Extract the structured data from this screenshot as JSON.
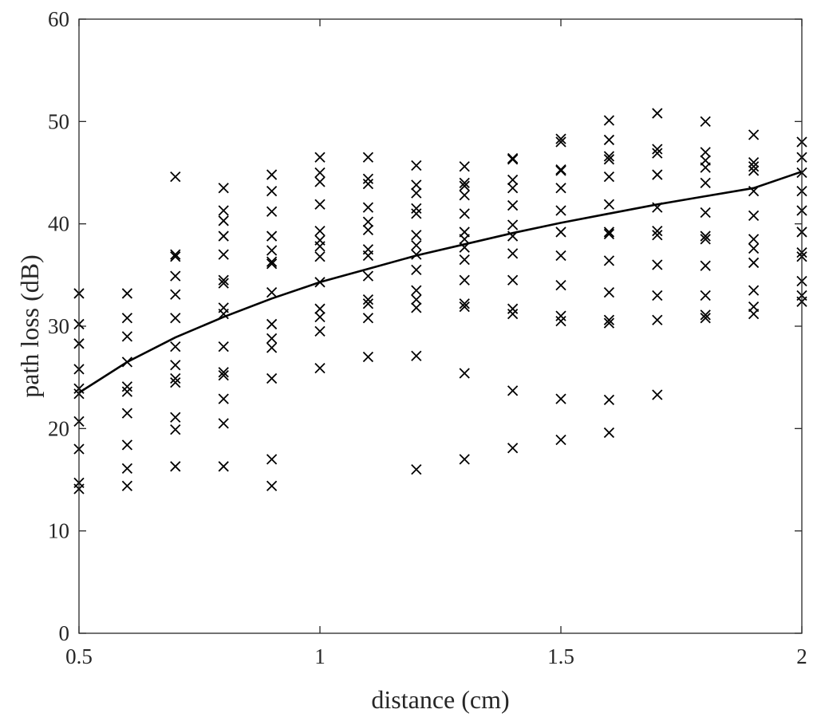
{
  "chart_data": {
    "type": "scatter",
    "title": "",
    "xlabel": "distance (cm)",
    "ylabel": "path loss (dB)",
    "xlim": [
      0.5,
      2
    ],
    "ylim": [
      0,
      60
    ],
    "xticks": [
      0.5,
      1,
      1.5,
      2
    ],
    "xtick_labels": [
      "0.5",
      "1",
      "1.5",
      "2"
    ],
    "yticks": [
      0,
      10,
      20,
      30,
      40,
      50,
      60
    ],
    "ytick_labels": [
      "0",
      "10",
      "20",
      "30",
      "40",
      "50",
      "60"
    ],
    "grid": false,
    "box": true,
    "colors": {
      "marks": "#000000",
      "axes": "#262626",
      "background": "#ffffff"
    },
    "series": [
      {
        "marker": "x",
        "points": [
          [
            0.5,
            33.2
          ],
          [
            0.5,
            30.2
          ],
          [
            0.5,
            28.3
          ],
          [
            0.5,
            25.8
          ],
          [
            0.5,
            23.9
          ],
          [
            0.5,
            23.4
          ],
          [
            0.5,
            20.7
          ],
          [
            0.5,
            18.0
          ],
          [
            0.5,
            14.7
          ],
          [
            0.5,
            14.1
          ],
          [
            0.6,
            33.2
          ],
          [
            0.6,
            30.8
          ],
          [
            0.6,
            29.0
          ],
          [
            0.6,
            26.5
          ],
          [
            0.6,
            24.1
          ],
          [
            0.6,
            23.6
          ],
          [
            0.6,
            21.5
          ],
          [
            0.6,
            18.4
          ],
          [
            0.6,
            16.1
          ],
          [
            0.6,
            14.4
          ],
          [
            0.7,
            44.6
          ],
          [
            0.7,
            37.0
          ],
          [
            0.7,
            36.8
          ],
          [
            0.7,
            34.9
          ],
          [
            0.7,
            33.1
          ],
          [
            0.7,
            30.8
          ],
          [
            0.7,
            28.0
          ],
          [
            0.7,
            26.2
          ],
          [
            0.7,
            24.9
          ],
          [
            0.7,
            24.5
          ],
          [
            0.7,
            21.1
          ],
          [
            0.7,
            19.9
          ],
          [
            0.7,
            16.3
          ],
          [
            0.8,
            43.5
          ],
          [
            0.8,
            41.3
          ],
          [
            0.8,
            40.3
          ],
          [
            0.8,
            38.8
          ],
          [
            0.8,
            37.0
          ],
          [
            0.8,
            34.5
          ],
          [
            0.8,
            34.2
          ],
          [
            0.8,
            31.8
          ],
          [
            0.8,
            31.2
          ],
          [
            0.8,
            28.0
          ],
          [
            0.8,
            25.5
          ],
          [
            0.8,
            25.2
          ],
          [
            0.8,
            22.9
          ],
          [
            0.8,
            20.5
          ],
          [
            0.8,
            16.3
          ],
          [
            0.9,
            44.8
          ],
          [
            0.9,
            43.2
          ],
          [
            0.9,
            41.2
          ],
          [
            0.9,
            38.8
          ],
          [
            0.9,
            37.4
          ],
          [
            0.9,
            36.3
          ],
          [
            0.9,
            36.1
          ],
          [
            0.9,
            33.3
          ],
          [
            0.9,
            30.2
          ],
          [
            0.9,
            28.8
          ],
          [
            0.9,
            27.9
          ],
          [
            0.9,
            24.9
          ],
          [
            0.9,
            17.0
          ],
          [
            0.9,
            14.4
          ],
          [
            1.0,
            46.5
          ],
          [
            1.0,
            45.0
          ],
          [
            1.0,
            44.1
          ],
          [
            1.0,
            41.9
          ],
          [
            1.0,
            39.3
          ],
          [
            1.0,
            38.4
          ],
          [
            1.0,
            37.8
          ],
          [
            1.0,
            36.8
          ],
          [
            1.0,
            34.3
          ],
          [
            1.0,
            31.7
          ],
          [
            1.0,
            30.9
          ],
          [
            1.0,
            29.5
          ],
          [
            1.0,
            25.9
          ],
          [
            1.1,
            46.5
          ],
          [
            1.1,
            44.4
          ],
          [
            1.1,
            43.9
          ],
          [
            1.1,
            41.6
          ],
          [
            1.1,
            40.2
          ],
          [
            1.1,
            39.4
          ],
          [
            1.1,
            37.5
          ],
          [
            1.1,
            36.9
          ],
          [
            1.1,
            34.9
          ],
          [
            1.1,
            32.6
          ],
          [
            1.1,
            32.2
          ],
          [
            1.1,
            30.8
          ],
          [
            1.1,
            27.0
          ],
          [
            1.2,
            45.7
          ],
          [
            1.2,
            43.8
          ],
          [
            1.2,
            43.0
          ],
          [
            1.2,
            41.5
          ],
          [
            1.2,
            41.0
          ],
          [
            1.2,
            38.9
          ],
          [
            1.2,
            37.9
          ],
          [
            1.2,
            37.0
          ],
          [
            1.2,
            35.5
          ],
          [
            1.2,
            33.5
          ],
          [
            1.2,
            32.6
          ],
          [
            1.2,
            31.8
          ],
          [
            1.2,
            27.1
          ],
          [
            1.2,
            16.0
          ],
          [
            1.3,
            45.6
          ],
          [
            1.3,
            44.0
          ],
          [
            1.3,
            43.7
          ],
          [
            1.3,
            42.8
          ],
          [
            1.3,
            41.0
          ],
          [
            1.3,
            39.2
          ],
          [
            1.3,
            38.5
          ],
          [
            1.3,
            37.7
          ],
          [
            1.3,
            36.5
          ],
          [
            1.3,
            34.5
          ],
          [
            1.3,
            32.2
          ],
          [
            1.3,
            31.9
          ],
          [
            1.3,
            25.4
          ],
          [
            1.3,
            17.0
          ],
          [
            1.4,
            46.4
          ],
          [
            1.4,
            46.3
          ],
          [
            1.4,
            44.3
          ],
          [
            1.4,
            43.5
          ],
          [
            1.4,
            41.8
          ],
          [
            1.4,
            39.9
          ],
          [
            1.4,
            38.8
          ],
          [
            1.4,
            37.1
          ],
          [
            1.4,
            34.5
          ],
          [
            1.4,
            31.7
          ],
          [
            1.4,
            31.2
          ],
          [
            1.4,
            23.7
          ],
          [
            1.4,
            18.1
          ],
          [
            1.5,
            48.3
          ],
          [
            1.5,
            48.0
          ],
          [
            1.5,
            45.3
          ],
          [
            1.5,
            45.2
          ],
          [
            1.5,
            43.5
          ],
          [
            1.5,
            41.3
          ],
          [
            1.5,
            39.2
          ],
          [
            1.5,
            36.9
          ],
          [
            1.5,
            34.0
          ],
          [
            1.5,
            31.0
          ],
          [
            1.5,
            30.5
          ],
          [
            1.5,
            22.9
          ],
          [
            1.5,
            18.9
          ],
          [
            1.6,
            50.1
          ],
          [
            1.6,
            48.2
          ],
          [
            1.6,
            46.6
          ],
          [
            1.6,
            46.3
          ],
          [
            1.6,
            44.6
          ],
          [
            1.6,
            41.9
          ],
          [
            1.6,
            39.2
          ],
          [
            1.6,
            39.0
          ],
          [
            1.6,
            36.4
          ],
          [
            1.6,
            33.3
          ],
          [
            1.6,
            30.6
          ],
          [
            1.6,
            30.3
          ],
          [
            1.6,
            22.8
          ],
          [
            1.6,
            19.6
          ],
          [
            1.7,
            50.8
          ],
          [
            1.7,
            47.3
          ],
          [
            1.7,
            46.9
          ],
          [
            1.7,
            44.8
          ],
          [
            1.7,
            41.6
          ],
          [
            1.7,
            39.3
          ],
          [
            1.7,
            38.9
          ],
          [
            1.7,
            36.0
          ],
          [
            1.7,
            33.0
          ],
          [
            1.7,
            30.6
          ],
          [
            1.7,
            23.3
          ],
          [
            1.8,
            50.0
          ],
          [
            1.8,
            47.0
          ],
          [
            1.8,
            46.2
          ],
          [
            1.8,
            45.5
          ],
          [
            1.8,
            44.0
          ],
          [
            1.8,
            41.1
          ],
          [
            1.8,
            38.8
          ],
          [
            1.8,
            38.5
          ],
          [
            1.8,
            35.9
          ],
          [
            1.8,
            33.0
          ],
          [
            1.8,
            31.1
          ],
          [
            1.8,
            30.8
          ],
          [
            1.9,
            48.7
          ],
          [
            1.9,
            46.0
          ],
          [
            1.9,
            45.6
          ],
          [
            1.9,
            45.2
          ],
          [
            1.9,
            43.2
          ],
          [
            1.9,
            40.8
          ],
          [
            1.9,
            38.5
          ],
          [
            1.9,
            37.6
          ],
          [
            1.9,
            36.2
          ],
          [
            1.9,
            33.5
          ],
          [
            1.9,
            31.9
          ],
          [
            1.9,
            31.2
          ],
          [
            2.0,
            48.0
          ],
          [
            2.0,
            46.5
          ],
          [
            2.0,
            45.0
          ],
          [
            2.0,
            43.2
          ],
          [
            2.0,
            41.3
          ],
          [
            2.0,
            39.2
          ],
          [
            2.0,
            37.2
          ],
          [
            2.0,
            36.8
          ],
          [
            2.0,
            34.4
          ],
          [
            2.0,
            33.0
          ],
          [
            2.0,
            32.4
          ]
        ]
      },
      {
        "line": true,
        "points": [
          [
            0.5,
            23.5
          ],
          [
            0.6,
            26.5
          ],
          [
            0.7,
            28.9
          ],
          [
            0.8,
            30.9
          ],
          [
            0.9,
            32.7
          ],
          [
            1.0,
            34.3
          ],
          [
            1.1,
            35.6
          ],
          [
            1.2,
            36.9
          ],
          [
            1.3,
            38.0
          ],
          [
            1.4,
            39.1
          ],
          [
            1.5,
            40.1
          ],
          [
            1.6,
            41.0
          ],
          [
            1.7,
            41.9
          ],
          [
            1.8,
            42.7
          ],
          [
            1.9,
            43.5
          ],
          [
            2.0,
            45.1
          ]
        ]
      }
    ]
  }
}
